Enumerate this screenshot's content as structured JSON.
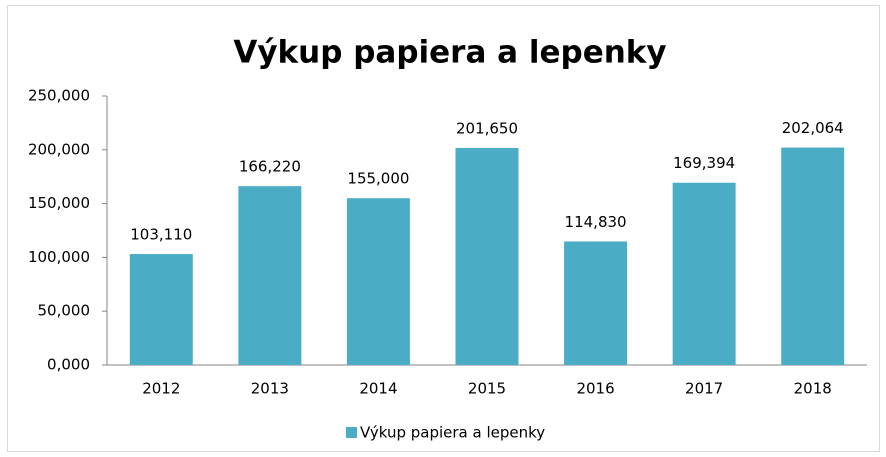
{
  "chart_data": {
    "type": "bar",
    "title": "Výkup papiera a lepenky",
    "categories": [
      "2012",
      "2013",
      "2014",
      "2015",
      "2016",
      "2017",
      "2018"
    ],
    "series": [
      {
        "name": "Výkup papiera a lepenky",
        "color": "#4bacc6",
        "values": [
          103.11,
          166.22,
          155,
          201.65,
          114.83,
          169.394,
          202.064
        ],
        "value_labels": [
          "103,110",
          "166,220",
          "155,000",
          "201,650",
          "114,830",
          "169,394",
          "202,064"
        ]
      }
    ],
    "ylim": [
      0,
      250
    ],
    "yticks": [
      {
        "value": 0,
        "label": "0,000"
      },
      {
        "value": 50,
        "label": "50,000"
      },
      {
        "value": 100,
        "label": "100,000"
      },
      {
        "value": 150,
        "label": "150,000"
      },
      {
        "value": 200,
        "label": "200,000"
      },
      {
        "value": 250,
        "label": "250,000"
      }
    ],
    "grid": false,
    "legend": "bottom"
  }
}
